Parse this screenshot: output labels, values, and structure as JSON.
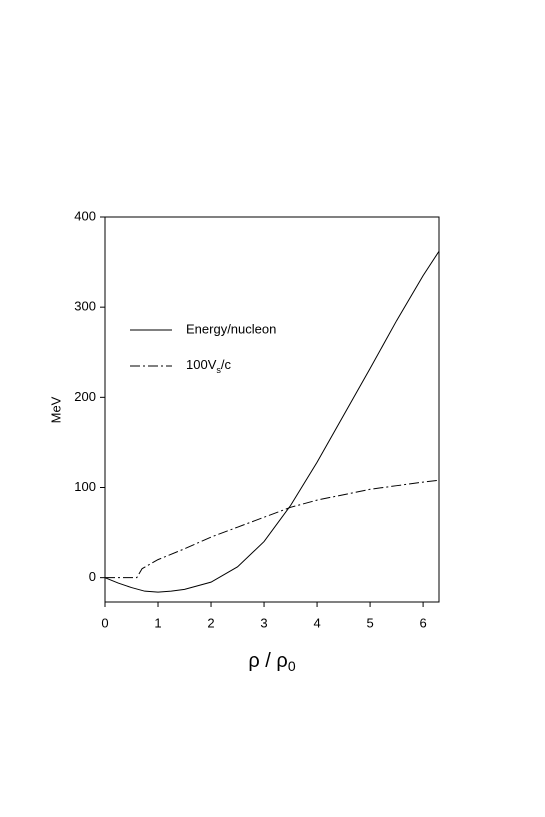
{
  "chart_data": {
    "type": "line",
    "xlabel": "ρ / ρ0",
    "ylabel": "MeV",
    "xlim": [
      0,
      6.3
    ],
    "ylim": [
      -27,
      400
    ],
    "xticks": [
      0,
      1,
      2,
      3,
      4,
      5,
      6
    ],
    "yticks": [
      0,
      100,
      200,
      300,
      400
    ],
    "series": [
      {
        "name": "Energy/nucleon",
        "color": "#000000",
        "dash": "solid",
        "x": [
          0,
          0.25,
          0.5,
          0.75,
          1,
          1.25,
          1.5,
          2,
          2.5,
          3,
          3.5,
          4,
          4.5,
          5,
          5.5,
          6,
          6.3
        ],
        "values": [
          0,
          -6,
          -11,
          -15,
          -16,
          -15,
          -13,
          -5,
          12,
          40,
          80,
          128,
          180,
          232,
          285,
          335,
          362
        ]
      },
      {
        "name": "100Vs/c",
        "color": "#000000",
        "dash": "dashdot",
        "x": [
          0,
          0.6,
          0.7,
          1,
          1.5,
          2,
          2.5,
          3,
          3.5,
          4,
          4.5,
          5,
          5.5,
          6,
          6.3
        ],
        "values": [
          0,
          0,
          10,
          20,
          32,
          45,
          56,
          67,
          78,
          86,
          92,
          98,
          102,
          106,
          108
        ]
      }
    ]
  }
}
